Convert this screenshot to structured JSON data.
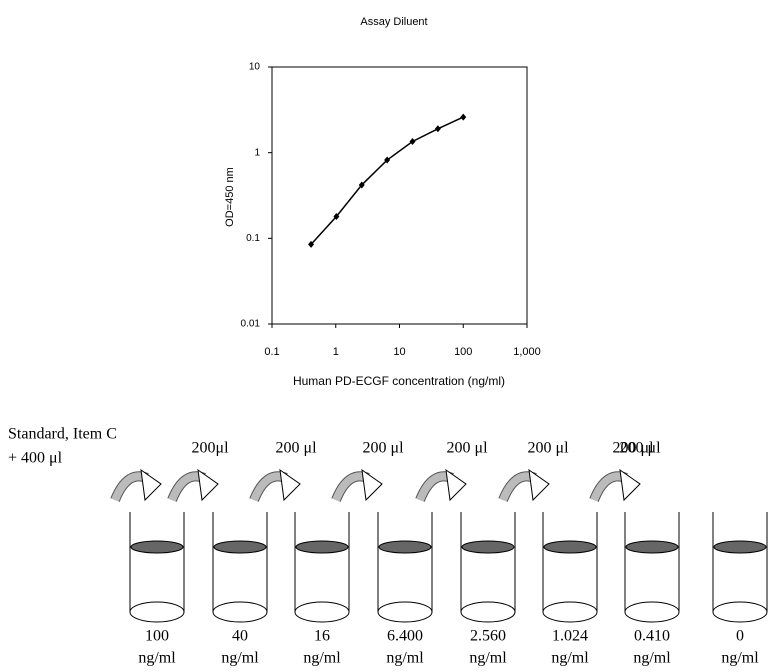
{
  "chart_data": {
    "type": "line",
    "title": "Assay Diluent",
    "y_label": "OD=450 nm",
    "x_label": "Human PD-ECGF concentration (ng/ml)",
    "x": [
      0.41,
      1.024,
      2.56,
      6.4,
      16,
      40,
      100
    ],
    "series": [
      {
        "color": "#000000",
        "values": [
          0.085,
          0.18,
          0.42,
          0.82,
          1.35,
          1.9,
          2.6
        ]
      }
    ],
    "xlim": [
      0.1,
      1000
    ],
    "ylim": [
      0.01,
      10
    ],
    "xticks": [
      0.1,
      1,
      10,
      100,
      {
        "value": 1000,
        "label": "1,000"
      }
    ],
    "yticks": [
      0.01,
      0.1,
      1,
      10
    ],
    "log_x": true,
    "log_y": true
  },
  "diagram": {
    "start_label": "Standard, Item C",
    "start_volume": "+ 400 μl",
    "transfers": [
      "200μl",
      "200 μl",
      "200 μl",
      "200 μl",
      "200 μl",
      "200 μl",
      "200 μl"
    ],
    "tubes": [
      {
        "concentration": "100",
        "unit": "ng/ml"
      },
      {
        "concentration": "40",
        "unit": "ng/ml"
      },
      {
        "concentration": "16",
        "unit": "ng/ml"
      },
      {
        "concentration": "6.400",
        "unit": "ng/ml"
      },
      {
        "concentration": "2.560",
        "unit": "ng/ml"
      },
      {
        "concentration": "1.024",
        "unit": "ng/ml"
      },
      {
        "concentration": "0.410",
        "unit": "ng/ml"
      },
      {
        "concentration": "0",
        "unit": "ng/ml"
      }
    ]
  }
}
